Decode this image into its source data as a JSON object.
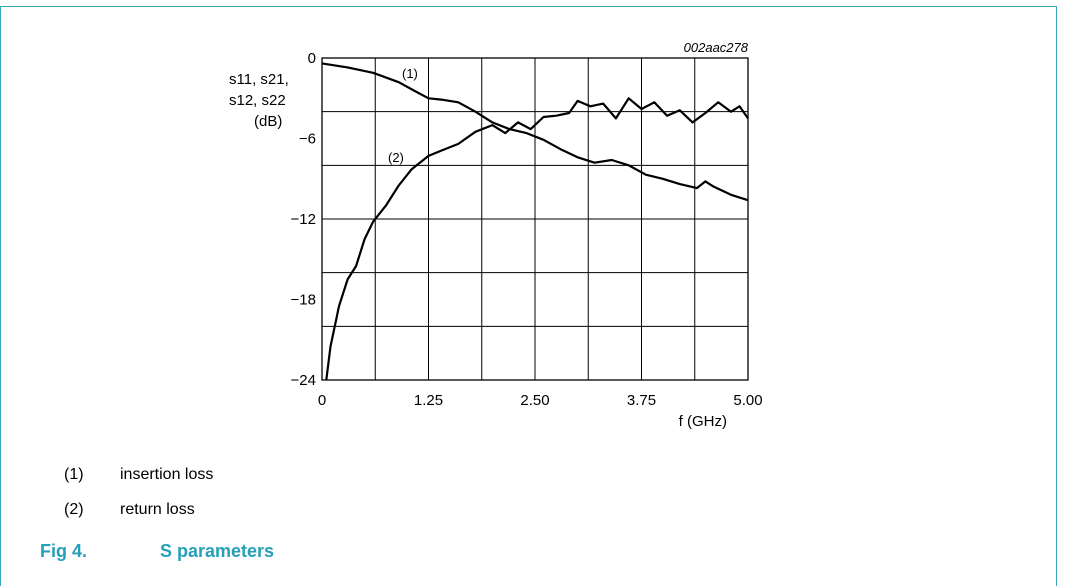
{
  "chart_data": {
    "type": "line",
    "figure_id": "002aac278",
    "ylabel_lines": [
      "s11, s21,",
      "s12, s22",
      "(dB)"
    ],
    "xlabel": "f (GHz)",
    "xlim": [
      0,
      5
    ],
    "ylim": [
      -24,
      0
    ],
    "xticks": [
      "0",
      "1.25",
      "2.50",
      "3.75",
      "5.00"
    ],
    "yticks": [
      "0",
      "−6",
      "−12",
      "−18",
      "−24"
    ],
    "grid": true,
    "series": [
      {
        "name": "(1)",
        "x": [
          0,
          0.3,
          0.6,
          0.9,
          1.1,
          1.25,
          1.4,
          1.6,
          1.8,
          2.0,
          2.2,
          2.4,
          2.6,
          2.8,
          3.0,
          3.2,
          3.4,
          3.6,
          3.8,
          4.0,
          4.2,
          4.4,
          4.5,
          4.6,
          4.8,
          5.0
        ],
        "values": [
          -0.4,
          -0.7,
          -1.1,
          -1.8,
          -2.5,
          -3.0,
          -3.1,
          -3.3,
          -4.0,
          -4.8,
          -5.3,
          -5.6,
          -6.1,
          -6.8,
          -7.4,
          -7.8,
          -7.6,
          -8.0,
          -8.7,
          -9.0,
          -9.4,
          -9.7,
          -9.2,
          -9.6,
          -10.2,
          -10.6
        ]
      },
      {
        "name": "(2)",
        "x": [
          0.05,
          0.1,
          0.2,
          0.3,
          0.4,
          0.5,
          0.6,
          0.75,
          0.9,
          1.05,
          1.25,
          1.4,
          1.6,
          1.8,
          2.0,
          2.15,
          2.3,
          2.45,
          2.6,
          2.75,
          2.9,
          3.0,
          3.15,
          3.3,
          3.45,
          3.6,
          3.75,
          3.9,
          4.05,
          4.2,
          4.35,
          4.5,
          4.65,
          4.8,
          4.9,
          5.0
        ],
        "values": [
          -24.0,
          -21.5,
          -18.5,
          -16.5,
          -15.5,
          -13.5,
          -12.2,
          -11.0,
          -9.5,
          -8.3,
          -7.3,
          -6.9,
          -6.4,
          -5.5,
          -5.0,
          -5.6,
          -4.8,
          -5.3,
          -4.4,
          -4.3,
          -4.1,
          -3.2,
          -3.6,
          -3.4,
          -4.5,
          -3.0,
          -3.8,
          -3.3,
          -4.3,
          -3.9,
          -4.8,
          -4.1,
          -3.3,
          -4.0,
          -3.6,
          -4.5
        ]
      }
    ]
  },
  "legend": [
    {
      "num": "(1)",
      "text": "insertion loss"
    },
    {
      "num": "(2)",
      "text": "return loss"
    }
  ],
  "caption": {
    "fig": "Fig 4.",
    "title": "S parameters"
  }
}
